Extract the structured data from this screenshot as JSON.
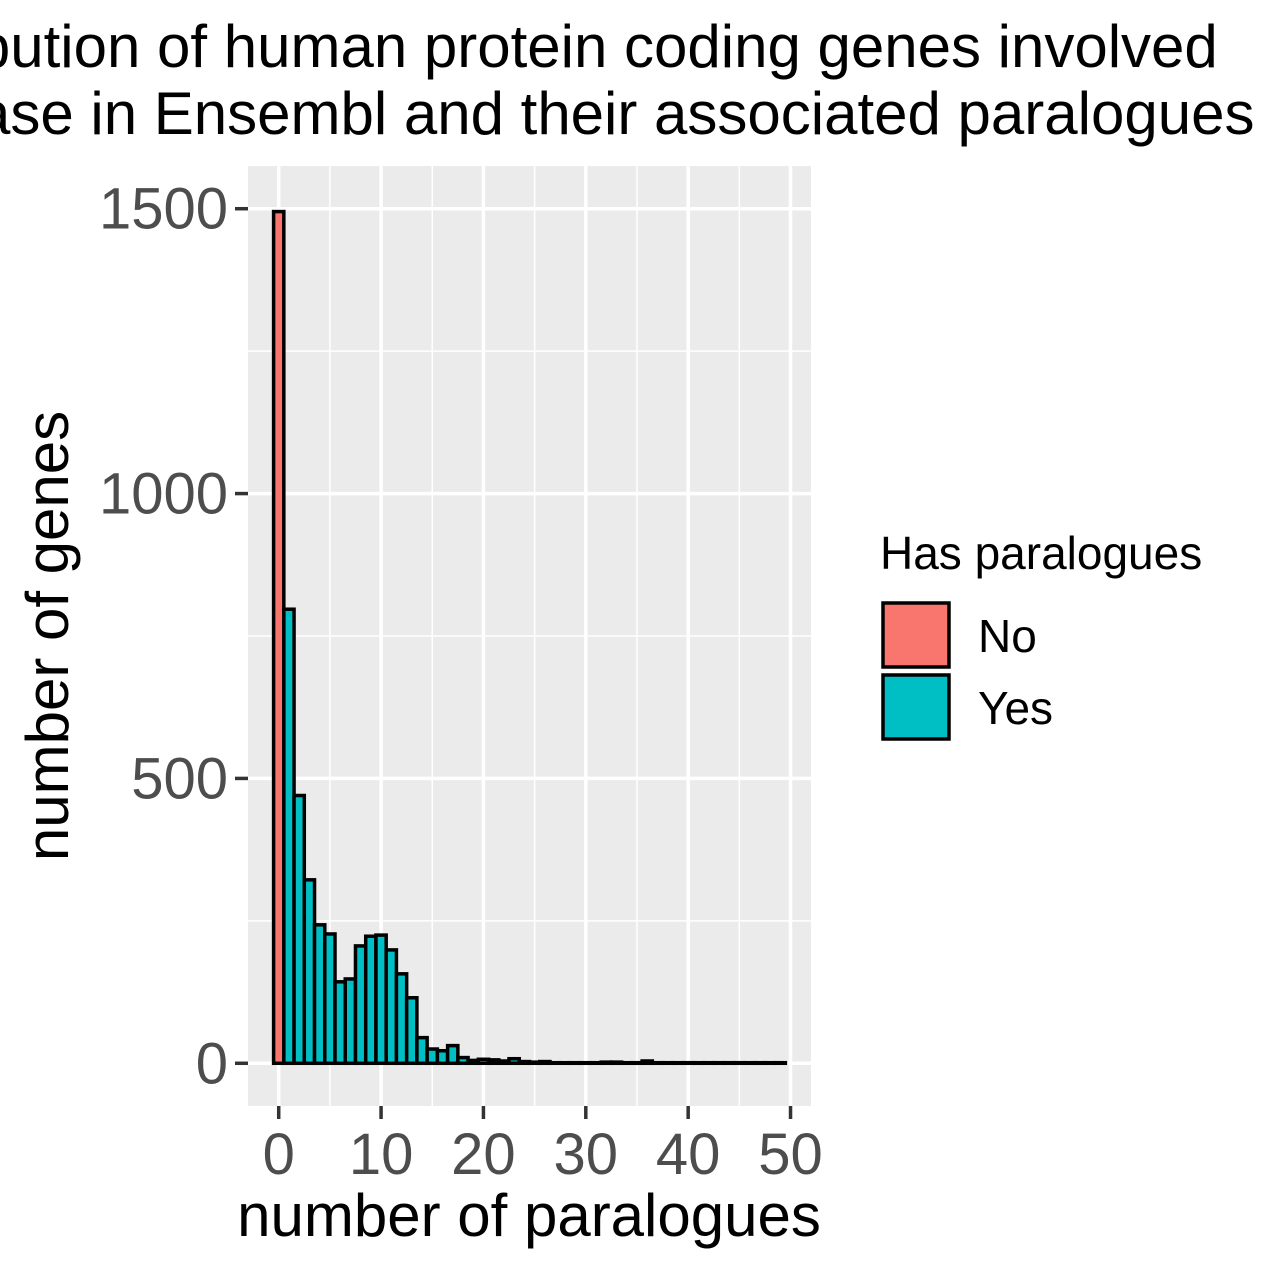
{
  "chart_data": {
    "type": "bar",
    "title_lines": [
      "Distribution of human protein coding genes involved",
      "in disease in Ensembl and their associated paralogues"
    ],
    "xlabel": "number of paralogues",
    "ylabel": "number of genes",
    "xlim": [
      -3,
      52
    ],
    "ylim": [
      -75,
      1575
    ],
    "x_ticks": [
      0,
      10,
      20,
      30,
      40,
      50
    ],
    "y_ticks": [
      0,
      500,
      1000,
      1500
    ],
    "grid": true,
    "legend": {
      "title": "Has paralogues",
      "placement": "right",
      "entries": [
        {
          "label": "No",
          "color": "#F8766D"
        },
        {
          "label": "Yes",
          "color": "#00BFC4"
        }
      ]
    },
    "series": [
      {
        "name": "No",
        "color": "#F8766D",
        "x": [
          0
        ],
        "values": [
          1495
        ]
      },
      {
        "name": "Yes",
        "color": "#00BFC4",
        "x": [
          1,
          2,
          3,
          4,
          5,
          6,
          7,
          8,
          9,
          10,
          11,
          12,
          13,
          14,
          15,
          16,
          17,
          18,
          19,
          20,
          21,
          22,
          23,
          24,
          25,
          26,
          27,
          28,
          29,
          30,
          31,
          32,
          33,
          34,
          35,
          36,
          37,
          38,
          39,
          40,
          41,
          42,
          43,
          44,
          45,
          46,
          47,
          48,
          49
        ],
        "values": [
          797,
          470,
          322,
          243,
          227,
          143,
          148,
          206,
          223,
          225,
          199,
          157,
          115,
          45,
          25,
          22,
          31,
          10,
          5,
          7,
          6,
          4,
          8,
          3,
          2,
          3,
          1,
          1,
          1,
          1,
          1,
          2,
          2,
          1,
          1,
          4,
          1,
          1,
          1,
          1,
          1,
          1,
          1,
          1,
          1,
          1,
          1,
          1,
          1
        ]
      }
    ]
  }
}
